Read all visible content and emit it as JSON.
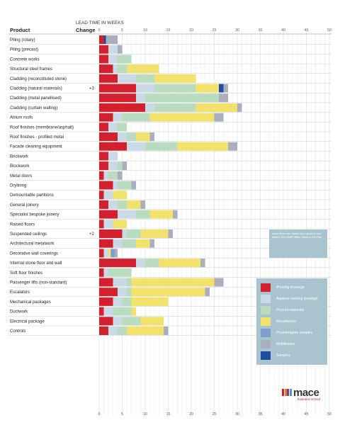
{
  "header": {
    "title": "LEAD TIME IN WEEKS",
    "product_label": "Product",
    "change_label": "Change"
  },
  "chart_data": {
    "type": "bar",
    "orientation": "horizontal",
    "stacked": true,
    "title": "LEAD TIME IN WEEKS",
    "xlim": [
      0,
      50
    ],
    "x_ticks": [
      0,
      5,
      10,
      15,
      20,
      25,
      30,
      35,
      40,
      45,
      50
    ],
    "grid": true,
    "legend_position": "bottom-right",
    "series": [
      {
        "name": "Working drawings",
        "color": "#d2202e"
      },
      {
        "name": "Approve working drawings",
        "color": "#c9d9e6"
      },
      {
        "name": "Procure materials",
        "color": "#b9dcc0"
      },
      {
        "name": "Manufacture",
        "color": "#f2e26b"
      },
      {
        "name": "Provide/agree samples",
        "color": "#7f9ec9"
      },
      {
        "name": "Mobilisation",
        "color": "#aaaebd"
      },
      {
        "name": "Samples",
        "color": "#1f4ea1"
      }
    ],
    "rows": [
      {
        "product": "Piling (rotary)",
        "change": "",
        "segments": [
          {
            "s": 0,
            "w": 1
          },
          {
            "s": 6,
            "w": 0.5
          },
          {
            "s": 5,
            "w": 2.5
          }
        ]
      },
      {
        "product": "Piling (precast)",
        "change": "",
        "segments": [
          {
            "s": 0,
            "w": 2
          },
          {
            "s": 1,
            "w": 2
          },
          {
            "s": 5,
            "w": 1
          }
        ]
      },
      {
        "product": "Concrete works",
        "change": "",
        "segments": [
          {
            "s": 0,
            "w": 2
          },
          {
            "s": 1,
            "w": 2
          },
          {
            "s": 2,
            "w": 3
          }
        ]
      },
      {
        "product": "Structural steel frames",
        "change": "",
        "segments": [
          {
            "s": 0,
            "w": 3
          },
          {
            "s": 1,
            "w": 1
          },
          {
            "s": 2,
            "w": 2
          },
          {
            "s": 3,
            "w": 7
          }
        ]
      },
      {
        "product": "Cladding (reconstituted stone)",
        "change": "",
        "segments": [
          {
            "s": 0,
            "w": 4
          },
          {
            "s": 1,
            "w": 4
          },
          {
            "s": 2,
            "w": 4
          },
          {
            "s": 3,
            "w": 9
          }
        ]
      },
      {
        "product": "Cladding (natural materials)",
        "change": "+3",
        "segments": [
          {
            "s": 0,
            "w": 8
          },
          {
            "s": 1,
            "w": 4
          },
          {
            "s": 2,
            "w": 9
          },
          {
            "s": 3,
            "w": 5
          },
          {
            "s": 6,
            "w": 1
          },
          {
            "s": 5,
            "w": 1
          }
        ]
      },
      {
        "product": "Cladding (metal panellised)",
        "change": "",
        "segments": [
          {
            "s": 0,
            "w": 8
          },
          {
            "s": 1,
            "w": 2
          },
          {
            "s": 2,
            "w": 16
          },
          {
            "s": 5,
            "w": 2
          }
        ]
      },
      {
        "product": "Cladding (curtain walling)",
        "change": "",
        "segments": [
          {
            "s": 0,
            "w": 10
          },
          {
            "s": 1,
            "w": 2
          },
          {
            "s": 2,
            "w": 9
          },
          {
            "s": 3,
            "w": 9
          },
          {
            "s": 5,
            "w": 1
          }
        ]
      },
      {
        "product": "Atrium roofs",
        "change": "",
        "segments": [
          {
            "s": 0,
            "w": 3
          },
          {
            "s": 1,
            "w": 2
          },
          {
            "s": 2,
            "w": 6
          },
          {
            "s": 3,
            "w": 14
          },
          {
            "s": 5,
            "w": 2
          }
        ]
      },
      {
        "product": "Roof finishes (membrane/asphalt)",
        "change": "",
        "segments": [
          {
            "s": 0,
            "w": 2
          },
          {
            "s": 1,
            "w": 2
          },
          {
            "s": 2,
            "w": 2
          }
        ]
      },
      {
        "product": "Roof finishes - profiled metal",
        "change": "",
        "segments": [
          {
            "s": 0,
            "w": 4
          },
          {
            "s": 1,
            "w": 2
          },
          {
            "s": 2,
            "w": 2
          },
          {
            "s": 3,
            "w": 3
          },
          {
            "s": 5,
            "w": 1
          }
        ]
      },
      {
        "product": "Facade cleaning equipment",
        "change": "",
        "segments": [
          {
            "s": 0,
            "w": 6
          },
          {
            "s": 1,
            "w": 4
          },
          {
            "s": 2,
            "w": 7
          },
          {
            "s": 3,
            "w": 11
          },
          {
            "s": 5,
            "w": 2
          }
        ]
      },
      {
        "product": "Brickwork",
        "change": "",
        "segments": [
          {
            "s": 0,
            "w": 2
          },
          {
            "s": 1,
            "w": 2
          }
        ]
      },
      {
        "product": "Blockwork",
        "change": "",
        "segments": [
          {
            "s": 0,
            "w": 2
          },
          {
            "s": 1,
            "w": 2
          },
          {
            "s": 2,
            "w": 1
          },
          {
            "s": 5,
            "w": 1
          }
        ]
      },
      {
        "product": "Metal doors",
        "change": "",
        "segments": [
          {
            "s": 0,
            "w": 1
          },
          {
            "s": 1,
            "w": 1
          },
          {
            "s": 2,
            "w": 2
          },
          {
            "s": 5,
            "w": 1
          }
        ]
      },
      {
        "product": "Drylining",
        "change": "",
        "segments": [
          {
            "s": 0,
            "w": 3
          },
          {
            "s": 1,
            "w": 1
          },
          {
            "s": 2,
            "w": 3
          },
          {
            "s": 5,
            "w": 1
          }
        ]
      },
      {
        "product": "Demountable partitions",
        "change": "",
        "segments": [
          {
            "s": 0,
            "w": 1
          },
          {
            "s": 1,
            "w": 2
          },
          {
            "s": 3,
            "w": 3
          }
        ]
      },
      {
        "product": "General joinery",
        "change": "",
        "segments": [
          {
            "s": 0,
            "w": 2
          },
          {
            "s": 1,
            "w": 2
          },
          {
            "s": 2,
            "w": 2
          },
          {
            "s": 3,
            "w": 3
          },
          {
            "s": 5,
            "w": 1
          }
        ]
      },
      {
        "product": "Specialist bespoke joinery",
        "change": "",
        "segments": [
          {
            "s": 0,
            "w": 4
          },
          {
            "s": 1,
            "w": 4
          },
          {
            "s": 2,
            "w": 3
          },
          {
            "s": 3,
            "w": 5
          },
          {
            "s": 5,
            "w": 1
          }
        ]
      },
      {
        "product": "Raised floors",
        "change": "",
        "segments": [
          {
            "s": 0,
            "w": 1
          },
          {
            "s": 1,
            "w": 2
          },
          {
            "s": 3,
            "w": 3
          }
        ]
      },
      {
        "product": "Suspended ceilings",
        "change": "+2",
        "segments": [
          {
            "s": 0,
            "w": 5
          },
          {
            "s": 1,
            "w": 1
          },
          {
            "s": 2,
            "w": 3
          },
          {
            "s": 3,
            "w": 6
          },
          {
            "s": 5,
            "w": 1
          }
        ]
      },
      {
        "product": "Architectural metalwork",
        "change": "",
        "segments": [
          {
            "s": 0,
            "w": 3
          },
          {
            "s": 1,
            "w": 2
          },
          {
            "s": 2,
            "w": 3
          },
          {
            "s": 3,
            "w": 3
          },
          {
            "s": 5,
            "w": 1
          }
        ]
      },
      {
        "product": "Decorative wall coverings",
        "change": "",
        "segments": [
          {
            "s": 0,
            "w": 1
          },
          {
            "s": 1,
            "w": 1
          },
          {
            "s": 3,
            "w": 0.5
          },
          {
            "s": 4,
            "w": 1
          },
          {
            "s": 5,
            "w": 0.5
          }
        ]
      },
      {
        "product": "Internal stone floor and wall",
        "change": "",
        "segments": [
          {
            "s": 0,
            "w": 8
          },
          {
            "s": 1,
            "w": 2
          },
          {
            "s": 2,
            "w": 3
          },
          {
            "s": 3,
            "w": 9
          },
          {
            "s": 5,
            "w": 1
          }
        ]
      },
      {
        "product": "Soft floor finishes",
        "change": "",
        "segments": [
          {
            "s": 0,
            "w": 1
          },
          {
            "s": 1,
            "w": 1
          },
          {
            "s": 2,
            "w": 5
          }
        ]
      },
      {
        "product": "Passenger lifts (non-standard)",
        "change": "",
        "segments": [
          {
            "s": 0,
            "w": 3
          },
          {
            "s": 1,
            "w": 3
          },
          {
            "s": 2,
            "w": 1
          },
          {
            "s": 3,
            "w": 18
          },
          {
            "s": 5,
            "w": 2
          }
        ]
      },
      {
        "product": "Escalators",
        "change": "",
        "segments": [
          {
            "s": 0,
            "w": 4
          },
          {
            "s": 1,
            "w": 2
          },
          {
            "s": 2,
            "w": 1
          },
          {
            "s": 3,
            "w": 16
          },
          {
            "s": 5,
            "w": 1
          }
        ]
      },
      {
        "product": "Mechanical packages",
        "change": "",
        "segments": [
          {
            "s": 0,
            "w": 3
          },
          {
            "s": 1,
            "w": 2
          },
          {
            "s": 2,
            "w": 2
          },
          {
            "s": 3,
            "w": 8
          }
        ]
      },
      {
        "product": "Ductwork",
        "change": "",
        "segments": [
          {
            "s": 0,
            "w": 1
          },
          {
            "s": 1,
            "w": 2
          },
          {
            "s": 2,
            "w": 4
          },
          {
            "s": 3,
            "w": 1
          }
        ]
      },
      {
        "product": "Electrical package",
        "change": "",
        "segments": [
          {
            "s": 0,
            "w": 3
          },
          {
            "s": 1,
            "w": 2
          },
          {
            "s": 2,
            "w": 4
          },
          {
            "s": 3,
            "w": 5
          }
        ]
      },
      {
        "product": "Controls",
        "change": "",
        "segments": [
          {
            "s": 0,
            "w": 2
          },
          {
            "s": 1,
            "w": 2
          },
          {
            "s": 2,
            "w": 2
          },
          {
            "s": 3,
            "w": 8
          },
          {
            "s": 5,
            "w": 1
          }
        ]
      }
    ]
  },
  "info_box": {
    "text": "Lead times are based on a generic five-storey 100,000ft² office block in the City"
  },
  "logo": {
    "name": "mace",
    "tagline": "business school",
    "bar_colors": [
      "#d2202e",
      "#f07d12",
      "#7b3b99",
      "#4a9bd4"
    ]
  }
}
